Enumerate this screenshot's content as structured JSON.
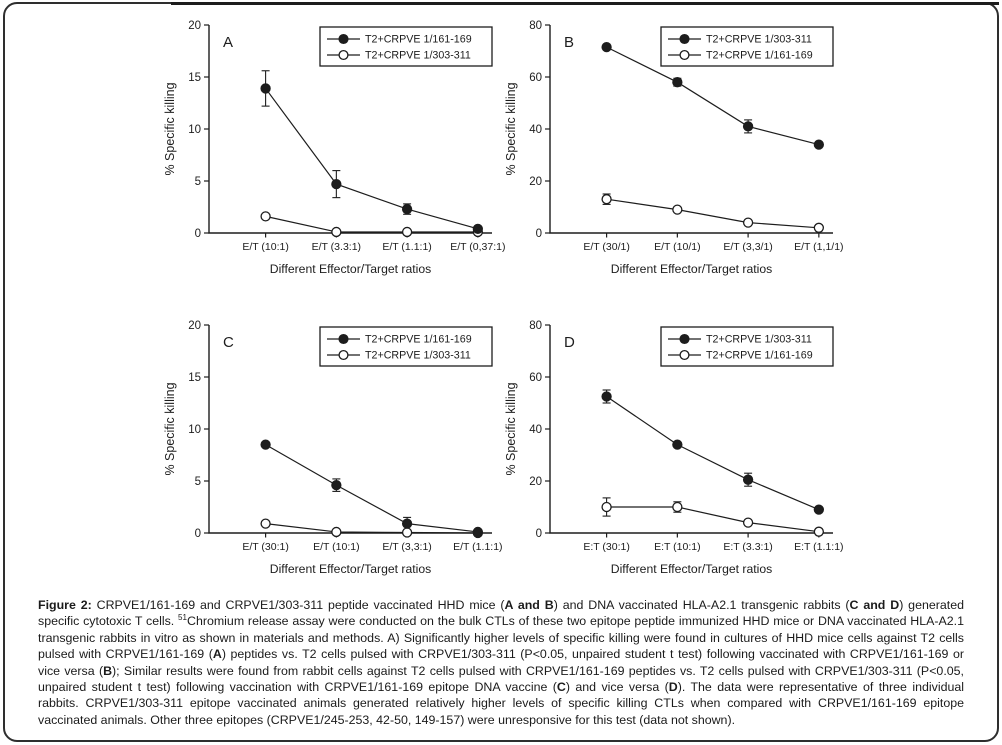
{
  "colors": {
    "ink": "#1d1d1d",
    "background": "#ffffff"
  },
  "caption": {
    "segments": [
      {
        "style": "bold",
        "text": "Figure 2:"
      },
      {
        "style": "normal",
        "text": " CRPVE1/161-169 and CRPVE1/303-311 peptide vaccinated HHD mice ("
      },
      {
        "style": "bold",
        "text": "A and B"
      },
      {
        "style": "normal",
        "text": ") and DNA vaccinated HLA-A2.1 transgenic rabbits ("
      },
      {
        "style": "bold",
        "text": "C and D"
      },
      {
        "style": "normal",
        "text": ") generated specific cytotoxic T cells. "
      },
      {
        "style": "sup",
        "text": "51"
      },
      {
        "style": "normal",
        "text": "Chromium release assay were conducted on the bulk CTLs of these two epitope peptide immunized HHD mice or DNA vaccinated HLA-A2.1 transgenic rabbits in vitro as shown in materials and methods. A) Significantly higher levels of specific killing were found in cultures of HHD mice cells against T2 cells pulsed with CRPVE1/161-169 ("
      },
      {
        "style": "bold",
        "text": "A"
      },
      {
        "style": "normal",
        "text": ") peptides vs. T2 cells pulsed with CRPVE1/303-311 (P<0.05, unpaired student t test) following vaccinated with CRPVE1/161-169 or vice versa ("
      },
      {
        "style": "bold",
        "text": "B"
      },
      {
        "style": "normal",
        "text": "); Similar results were found from rabbit cells against T2 cells pulsed with CRPVE1/161-169 peptides vs. T2 cells pulsed with CRPVE1/303-311 (P<0.05, unpaired student t test) following vaccination with CRPVE1/161-169 epitope DNA vaccine ("
      },
      {
        "style": "bold",
        "text": "C"
      },
      {
        "style": "normal",
        "text": ") and vice versa ("
      },
      {
        "style": "bold",
        "text": "D"
      },
      {
        "style": "normal",
        "text": "). The data were representative of three individual rabbits. CRPVE1/303-311 epitope vaccinated animals generated relatively higher levels of specific killing CTLs when compared with CRPVE1/161-169 epitope vaccinated animals. Other three epitopes (CRPVE1/245-253, 42-50, 149-157) were unresponsive for this test (data not shown)."
      }
    ]
  },
  "chart_data": [
    {
      "type": "line",
      "panel_label": "A",
      "ylabel": "% Specific killing",
      "xlabel": "Different Effector/Target ratios",
      "ylim": [
        0,
        20
      ],
      "yticks": [
        0,
        5,
        10,
        15,
        20
      ],
      "grid": false,
      "legend_position": "top-right",
      "categories": [
        "E/T (10:1)",
        "E/T (3.3:1)",
        "E/T (1.1:1)",
        "E/T (0,37:1)"
      ],
      "series": [
        {
          "name": "T2+CRPVE 1/161-169",
          "marker": "filled",
          "values": [
            13.9,
            4.7,
            2.3,
            0.4
          ],
          "errors": [
            1.7,
            1.3,
            0.5,
            0
          ]
        },
        {
          "name": "T2+CRPVE 1/303-311",
          "marker": "open",
          "values": [
            1.6,
            0.1,
            0.1,
            0.1
          ],
          "errors": [
            0,
            0,
            0,
            0
          ]
        }
      ]
    },
    {
      "type": "line",
      "panel_label": "B",
      "ylabel": "% Specific killing",
      "xlabel": "Different Effector/Target ratios",
      "ylim": [
        0,
        80
      ],
      "yticks": [
        0,
        20,
        40,
        60,
        80
      ],
      "grid": false,
      "legend_position": "top-right",
      "categories": [
        "E/T (30/1)",
        "E/T (10/1)",
        "E/T (3,3/1)",
        "E/T (1,1/1)"
      ],
      "series": [
        {
          "name": "T2+CRPVE 1/303-311",
          "marker": "filled",
          "values": [
            71.5,
            58,
            41,
            34
          ],
          "errors": [
            0,
            1.5,
            2.5,
            0
          ]
        },
        {
          "name": "T2+CRPVE 1/161-169",
          "marker": "open",
          "values": [
            13,
            9,
            4,
            2
          ],
          "errors": [
            2,
            0,
            0,
            0
          ]
        }
      ]
    },
    {
      "type": "line",
      "panel_label": "C",
      "ylabel": "% Specific killing",
      "xlabel": "Different Effector/Target ratios",
      "ylim": [
        0,
        20
      ],
      "yticks": [
        0,
        5,
        10,
        15,
        20
      ],
      "grid": false,
      "legend_position": "top-right",
      "categories": [
        "E/T (30:1)",
        "E/T (10:1)",
        "E/T (3,3:1)",
        "E/T (1.1:1)"
      ],
      "series": [
        {
          "name": "T2+CRPVE 1/161-169",
          "marker": "filled",
          "values": [
            8.5,
            4.6,
            0.9,
            0.1
          ],
          "errors": [
            0,
            0.6,
            0.6,
            0
          ]
        },
        {
          "name": "T2+CRPVE 1/303-311",
          "marker": "open",
          "values": [
            0.9,
            0.1,
            0.05,
            0
          ],
          "errors": [
            0,
            0,
            0,
            0
          ]
        }
      ]
    },
    {
      "type": "line",
      "panel_label": "D",
      "ylabel": "% Specific killing",
      "xlabel": "Different Effector/Target ratios",
      "ylim": [
        0,
        80
      ],
      "yticks": [
        0,
        20,
        40,
        60,
        80
      ],
      "grid": false,
      "legend_position": "top-right",
      "categories": [
        "E:T (30:1)",
        "E:T (10:1)",
        "E:T (3.3:1)",
        "E:T (1.1:1)"
      ],
      "series": [
        {
          "name": "T2+CRPVE 1/303-311",
          "marker": "filled",
          "values": [
            52.5,
            34,
            20.5,
            9
          ],
          "errors": [
            2.5,
            0,
            2.5,
            0
          ]
        },
        {
          "name": "T2+CRPVE 1/161-169",
          "marker": "open",
          "values": [
            10,
            10,
            4,
            0.5
          ],
          "errors": [
            3.5,
            2,
            0,
            0
          ]
        }
      ]
    }
  ]
}
